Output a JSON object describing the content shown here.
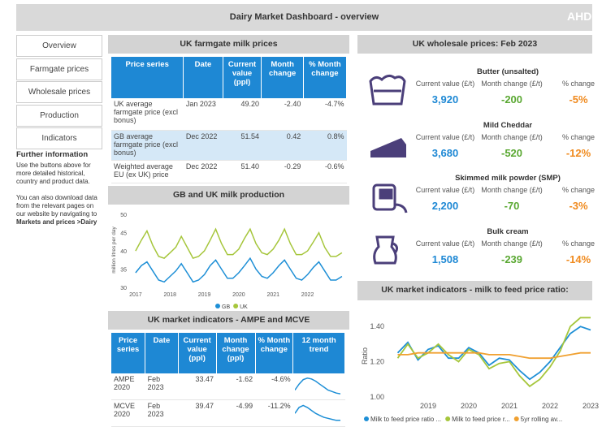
{
  "header": {
    "title": "Dairy Market Dashboard - overview",
    "logo": "AHD"
  },
  "nav": [
    "Overview",
    "Farmgate prices",
    "Wholesale prices",
    "Production",
    "Indicators"
  ],
  "further_info": {
    "title": "Further information",
    "paragraph1": "Use the buttons above for more detailed historical, country and product data.",
    "paragraph2": "You can also download data from the relevant pages on our website by navigating to",
    "paragraph2_bold": "Markets and prices >Dairy"
  },
  "farmgate": {
    "title": "UK farmgate milk prices",
    "columns": [
      "Price series",
      "Date",
      "Current value (ppl)",
      "Month change",
      "% Month change"
    ],
    "rows": [
      [
        "UK average farmgate price (excl bonus)",
        "Jan 2023",
        "49.20",
        "-2.40",
        "-4.7%"
      ],
      [
        "GB average farmgate price (excl bonus)",
        "Dec 2022",
        "51.54",
        "0.42",
        "0.8%"
      ],
      [
        "Weighted average EU (ex UK) price",
        "Dec 2022",
        "51.40",
        "-0.29",
        "-0.6%"
      ]
    ]
  },
  "production_title": "GB and UK milk production",
  "indicators": {
    "title": "UK market indicators - AMPE and MCVE",
    "columns": [
      "Price series",
      "Date",
      "Current value (ppl)",
      "Month change (ppl)",
      "% Month change",
      "12 month trend"
    ],
    "rows": [
      [
        "AMPE 2020",
        "Feb 2023",
        "33.47",
        "-1.62",
        "-4.6%"
      ],
      [
        "MCVE 2020",
        "Feb 2023",
        "39.47",
        "-4.99",
        "-11.2%"
      ]
    ]
  },
  "wholesale": {
    "title": "UK wholesale prices: Feb 2023",
    "labels": [
      "Current value (£/t)",
      "Month change (£/t)",
      "% change"
    ],
    "products": [
      {
        "name": "Butter (unsalted)",
        "values": [
          "3,920",
          "-200",
          "-5%"
        ]
      },
      {
        "name": "Mild Cheddar",
        "values": [
          "3,680",
          "-520",
          "-12%"
        ]
      },
      {
        "name": "Skimmed milk powder (SMP)",
        "values": [
          "2,200",
          "-70",
          "-3%"
        ]
      },
      {
        "name": "Bulk cream",
        "values": [
          "1,508",
          "-239",
          "-14%"
        ]
      }
    ]
  },
  "ratio_title": "UK market indicators - milk to feed price ratio:",
  "chart_data": [
    {
      "type": "line",
      "y_label": "million litres per day",
      "x": [
        2017,
        2017.17,
        2017.33,
        2017.5,
        2017.67,
        2017.83,
        2018,
        2018.17,
        2018.33,
        2018.5,
        2018.67,
        2018.83,
        2019,
        2019.17,
        2019.33,
        2019.5,
        2019.67,
        2019.83,
        2020,
        2020.17,
        2020.33,
        2020.5,
        2020.67,
        2020.83,
        2021,
        2021.17,
        2021.33,
        2021.5,
        2021.67,
        2021.83,
        2022,
        2022.17,
        2022.33,
        2022.5,
        2022.67,
        2022.83,
        2023
      ],
      "series": [
        {
          "name": "GB",
          "color": "#1e8fd6",
          "values": [
            34,
            36,
            37,
            34.5,
            32,
            31.5,
            33,
            34.5,
            36.5,
            34,
            31.5,
            32,
            33.5,
            36,
            37.5,
            35,
            32.5,
            32.5,
            34,
            36,
            38,
            35,
            33,
            32.5,
            34,
            36,
            37.5,
            35,
            32.5,
            32,
            33.5,
            35.5,
            37,
            34.5,
            32,
            32,
            33
          ]
        },
        {
          "name": "UK",
          "color": "#a6c63c",
          "values": [
            40,
            43,
            45.5,
            41.5,
            38.5,
            38,
            39.5,
            41,
            44,
            41,
            38,
            38.5,
            40,
            43,
            46,
            42,
            39,
            39,
            40.5,
            43.5,
            46,
            42,
            39.5,
            39,
            40.5,
            43,
            46,
            42,
            39,
            39,
            40,
            42.5,
            45,
            41,
            38.5,
            38.5,
            39.5
          ]
        }
      ],
      "xlim": [
        2016.86,
        2023.05
      ],
      "xticks": [
        2017,
        2018,
        2019,
        2020,
        2021,
        2022
      ],
      "ylim": [
        30,
        50.5
      ],
      "yticks": [
        30,
        35,
        40,
        45,
        50
      ],
      "grid": false,
      "legend": "bottom"
    },
    {
      "type": "line",
      "y_label": "Ratio",
      "x": [
        2018.25,
        2018.5,
        2018.75,
        2019,
        2019.25,
        2019.5,
        2019.75,
        2020,
        2020.25,
        2020.5,
        2020.75,
        2021,
        2021.25,
        2021.5,
        2021.75,
        2022,
        2022.25,
        2022.5,
        2022.75,
        2023
      ],
      "series": [
        {
          "name": "Milk to feed price ratio ...",
          "color": "#1e8fd6",
          "values": [
            1.25,
            1.31,
            1.21,
            1.27,
            1.29,
            1.22,
            1.22,
            1.28,
            1.25,
            1.18,
            1.22,
            1.21,
            1.15,
            1.1,
            1.14,
            1.2,
            1.28,
            1.36,
            1.4,
            1.38
          ]
        },
        {
          "name": "Milk to feed price r...",
          "color": "#a6c63c",
          "values": [
            1.22,
            1.3,
            1.22,
            1.25,
            1.3,
            1.24,
            1.2,
            1.27,
            1.24,
            1.16,
            1.19,
            1.2,
            1.12,
            1.06,
            1.1,
            1.17,
            1.26,
            1.4,
            1.45,
            1.45
          ]
        },
        {
          "name": "5yr rolling av...",
          "color": "#f0a030",
          "values": [
            1.24,
            1.24,
            1.25,
            1.25,
            1.25,
            1.25,
            1.25,
            1.25,
            1.25,
            1.24,
            1.24,
            1.24,
            1.23,
            1.22,
            1.22,
            1.22,
            1.23,
            1.24,
            1.25,
            1.25
          ]
        }
      ],
      "xlim": [
        2018.02,
        2023.04
      ],
      "xticks": [
        2019,
        2020,
        2021,
        2022,
        2023
      ],
      "ylim": [
        0.995,
        1.47
      ],
      "yticks": [
        {
          "value": 1,
          "label": "1.00"
        },
        {
          "value": 1.2,
          "label": "1.20"
        },
        {
          "value": 1.4,
          "label": "1.40"
        }
      ],
      "grid": false,
      "legend": "bottom"
    },
    {
      "type": "line",
      "color": "#1e8fd6",
      "values": [
        36,
        40,
        43,
        44,
        43.5,
        42,
        40,
        38,
        36,
        35,
        34,
        33.5
      ],
      "ylim": [
        33,
        45
      ]
    },
    {
      "type": "line",
      "color": "#1e8fd6",
      "values": [
        43,
        46,
        47,
        46,
        44.5,
        43,
        42,
        41,
        40.5,
        40,
        39.5,
        39.5
      ],
      "ylim": [
        39,
        48
      ]
    }
  ]
}
